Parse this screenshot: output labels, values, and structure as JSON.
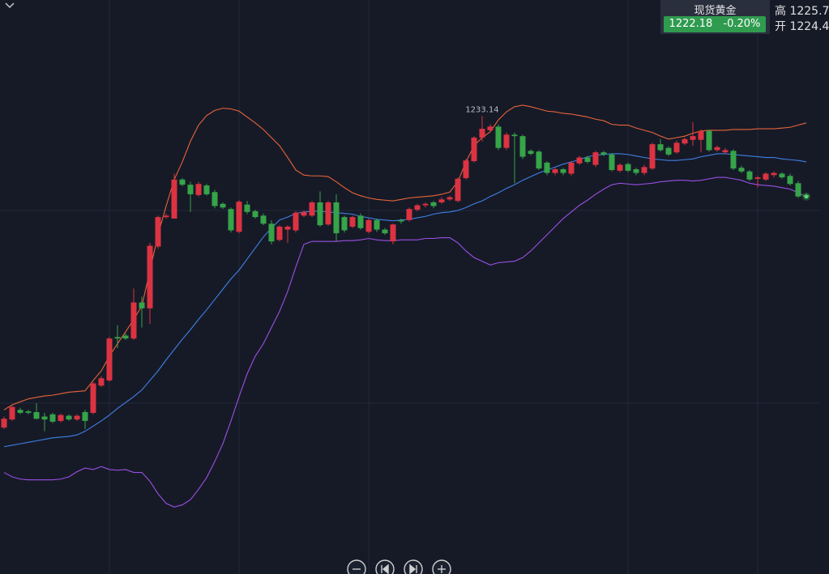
{
  "header": {
    "name": "现货黄金",
    "price": "1222.18",
    "change": "-0.20%",
    "high": "高 1225.7",
    "open": "开 1224.4"
  },
  "chart_data": {
    "type": "candlestick",
    "ylim": [
      1170.9,
      1248.9
    ],
    "up_color": "#dc3342",
    "down_color": "#36a449",
    "open": [
      1190.8,
      1191.9,
      1193.2,
      1193.0,
      1192.9,
      1192.3,
      1192.6,
      1191.7,
      1192.4,
      1191.9,
      1192.9,
      1192.8,
      1196.5,
      1197.2,
      1203.1,
      1203.3,
      1202.9,
      1207.8,
      1207.0,
      1215.4,
      1219.4,
      1219.2,
      1224.5,
      1223.8,
      1222.4,
      1223.7,
      1222.8,
      1221.2,
      1220.5,
      1217.4,
      1221.1,
      1220.2,
      1219.6,
      1218.5,
      1216.3,
      1217.7,
      1217.6,
      1219.6,
      1219.6,
      1221.4,
      1218.4,
      1221.4,
      1219.4,
      1218.1,
      1219.6,
      1217.4,
      1219.0,
      1217.7,
      1216.1,
      1219.0,
      1219.0,
      1220.4,
      1221.0,
      1221.4,
      1221.4,
      1221.8,
      1221.6,
      1224.7,
      1227.0,
      1230.2,
      1231.2,
      1231.7,
      1228.8,
      1230.6,
      1230.4,
      1228.4,
      1228.3,
      1226.8,
      1225.4,
      1225.9,
      1225.3,
      1226.7,
      1227.5,
      1226.5,
      1228.2,
      1227.9,
      1225.7,
      1226.6,
      1225.9,
      1225.4,
      1226.0,
      1229.3,
      1228.8,
      1228.2,
      1229.4,
      1229.9,
      1229.9,
      1231.1,
      1228.5,
      1228.2,
      1228.4,
      1226.1,
      1225.6,
      1224.6,
      1224.5,
      1225.1,
      1225.3,
      1225.0,
      1224.0,
      1222.4
    ],
    "high": [
      1192.3,
      1193.9,
      1193.5,
      1193.2,
      1194.1,
      1192.8,
      1192.8,
      1192.7,
      1192.6,
      1192.6,
      1193.2,
      1197.0,
      1197.8,
      1203.1,
      1204.7,
      1203.6,
      1209.7,
      1208.6,
      1215.9,
      1219.6,
      1219.9,
      1225.3,
      1224.7,
      1224.2,
      1224.2,
      1223.9,
      1223.1,
      1221.4,
      1220.7,
      1221.7,
      1221.6,
      1220.4,
      1219.9,
      1219.0,
      1218.3,
      1218.3,
      1220.2,
      1220.3,
      1221.6,
      1222.9,
      1221.6,
      1222.5,
      1219.6,
      1219.6,
      1219.9,
      1219.2,
      1219.2,
      1217.9,
      1218.5,
      1219.2,
      1220.7,
      1221.2,
      1221.4,
      1221.6,
      1222.1,
      1222.3,
      1224.8,
      1227.3,
      1230.4,
      1233.14,
      1232.0,
      1232.0,
      1230.9,
      1230.9,
      1230.6,
      1228.6,
      1228.5,
      1227.0,
      1226.1,
      1226.1,
      1227.0,
      1227.7,
      1227.7,
      1228.4,
      1228.4,
      1228.1,
      1226.7,
      1226.8,
      1226.1,
      1226.5,
      1229.5,
      1230.0,
      1229.0,
      1229.8,
      1230.2,
      1232.3,
      1231.3,
      1231.3,
      1229.1,
      1228.8,
      1228.6,
      1226.4,
      1225.8,
      1225.0,
      1225.5,
      1225.6,
      1225.5,
      1225.3,
      1224.3,
      1222.6
    ],
    "low": [
      1190.6,
      1191.7,
      1192.6,
      1192.6,
      1191.9,
      1190.3,
      1191.4,
      1191.5,
      1191.7,
      1191.7,
      1190.6,
      1192.6,
      1196.3,
      1197.0,
      1201.6,
      1202.7,
      1202.7,
      1204.4,
      1204.9,
      1215.1,
      1219.2,
      1219.2,
      1223.6,
      1220.1,
      1222.2,
      1222.3,
      1220.6,
      1220.5,
      1217.3,
      1217.2,
      1219.8,
      1219.2,
      1218.3,
      1215.7,
      1216.1,
      1215.9,
      1217.3,
      1219.4,
      1219.4,
      1218.1,
      1218.2,
      1216.1,
      1217.3,
      1217.9,
      1217.7,
      1217.2,
      1217.4,
      1217.0,
      1215.7,
      1218.5,
      1218.8,
      1220.2,
      1220.7,
      1220.6,
      1221.2,
      1221.6,
      1221.4,
      1224.5,
      1226.8,
      1229.7,
      1231.0,
      1228.5,
      1228.5,
      1224.0,
      1227.3,
      1227.8,
      1225.8,
      1225.1,
      1225.1,
      1225.1,
      1225.0,
      1226.5,
      1226.7,
      1226.2,
      1227.7,
      1225.6,
      1225.5,
      1225.5,
      1225.1,
      1225.1,
      1225.8,
      1228.3,
      1227.7,
      1228.0,
      1229.2,
      1229.1,
      1228.2,
      1228.3,
      1228.3,
      1228.0,
      1225.8,
      1225.4,
      1224.3,
      1223.4,
      1224.3,
      1224.8,
      1224.6,
      1223.7,
      1222.0,
      1222.0
    ],
    "close": [
      1192.0,
      1193.6,
      1192.8,
      1192.8,
      1192.0,
      1191.9,
      1191.6,
      1192.5,
      1191.9,
      1192.4,
      1191.7,
      1196.8,
      1197.5,
      1202.9,
      1202.9,
      1202.9,
      1207.8,
      1207.0,
      1215.5,
      1219.4,
      1219.6,
      1224.5,
      1223.8,
      1222.5,
      1223.9,
      1222.5,
      1220.9,
      1220.7,
      1217.6,
      1221.5,
      1220.1,
      1219.4,
      1218.5,
      1216.1,
      1218.1,
      1218.1,
      1220.0,
      1220.1,
      1221.4,
      1218.3,
      1221.4,
      1217.2,
      1217.6,
      1219.4,
      1217.9,
      1219.0,
      1217.7,
      1217.2,
      1218.4,
      1218.8,
      1220.5,
      1221.0,
      1221.2,
      1220.9,
      1221.8,
      1222.1,
      1224.6,
      1227.1,
      1230.2,
      1231.4,
      1231.7,
      1228.8,
      1230.6,
      1230.4,
      1227.6,
      1228.0,
      1226.0,
      1225.4,
      1225.9,
      1225.4,
      1226.8,
      1227.5,
      1226.9,
      1228.2,
      1227.9,
      1225.8,
      1226.5,
      1225.7,
      1225.4,
      1226.2,
      1229.3,
      1228.5,
      1227.9,
      1229.5,
      1230.0,
      1230.4,
      1231.1,
      1228.5,
      1228.9,
      1228.5,
      1226.0,
      1225.6,
      1224.5,
      1224.8,
      1225.3,
      1225.4,
      1224.8,
      1223.9,
      1222.2,
      1222.18
    ],
    "series": [
      {
        "color": "#e8643a",
        "values": [
          1193.2,
          1193.9,
          1194.3,
          1194.7,
          1194.9,
          1195.1,
          1195.2,
          1195.4,
          1195.6,
          1195.7,
          1195.8,
          1197.2,
          1198.5,
          1200.5,
          1202.2,
          1203.8,
          1205.5,
          1207.3,
          1212.1,
          1217.0,
          1220.9,
          1224.5,
          1226.9,
          1229.7,
          1231.9,
          1233.2,
          1233.9,
          1234.2,
          1234.1,
          1233.8,
          1233.0,
          1232.2,
          1231.3,
          1230.2,
          1229.1,
          1227.5,
          1225.8,
          1225.1,
          1225.0,
          1225.0,
          1224.9,
          1224.2,
          1223.4,
          1222.7,
          1222.3,
          1222.0,
          1221.8,
          1221.7,
          1221.6,
          1221.8,
          1222.0,
          1222.1,
          1222.2,
          1222.3,
          1222.5,
          1222.8,
          1224.2,
          1226.9,
          1229.1,
          1230.2,
          1231.0,
          1232.6,
          1233.7,
          1234.4,
          1234.6,
          1234.4,
          1234.1,
          1233.8,
          1233.7,
          1233.5,
          1233.4,
          1233.2,
          1233.0,
          1232.7,
          1232.5,
          1232.0,
          1231.9,
          1231.9,
          1231.5,
          1231.2,
          1230.9,
          1230.4,
          1230.0,
          1230.2,
          1230.4,
          1230.8,
          1231.1,
          1231.2,
          1231.2,
          1231.2,
          1231.3,
          1231.3,
          1231.3,
          1231.4,
          1231.4,
          1231.4,
          1231.5,
          1231.6,
          1231.9,
          1232.2
        ]
      },
      {
        "color": "#3f80e6",
        "values": [
          1188.2,
          1188.4,
          1188.6,
          1188.8,
          1189.0,
          1189.2,
          1189.4,
          1189.5,
          1189.6,
          1189.8,
          1190.3,
          1191.0,
          1191.7,
          1192.5,
          1193.4,
          1194.2,
          1195.0,
          1195.9,
          1197.2,
          1198.5,
          1200.0,
          1201.4,
          1202.8,
          1204.1,
          1205.5,
          1206.8,
          1208.2,
          1209.6,
          1211.0,
          1212.2,
          1213.7,
          1215.2,
          1216.7,
          1217.9,
          1219.0,
          1219.4,
          1219.9,
          1220.1,
          1220.2,
          1220.2,
          1220.1,
          1220.0,
          1219.9,
          1219.8,
          1219.5,
          1219.3,
          1219.1,
          1219.0,
          1218.9,
          1219.0,
          1219.1,
          1219.3,
          1219.5,
          1219.8,
          1220.0,
          1220.1,
          1220.3,
          1220.7,
          1221.2,
          1221.6,
          1222.2,
          1222.7,
          1223.3,
          1223.8,
          1224.4,
          1224.9,
          1225.4,
          1225.8,
          1226.2,
          1226.6,
          1226.9,
          1227.2,
          1227.6,
          1227.8,
          1227.9,
          1228.0,
          1228.0,
          1227.9,
          1227.7,
          1227.5,
          1227.3,
          1227.2,
          1227.1,
          1227.1,
          1227.2,
          1227.3,
          1227.6,
          1227.8,
          1228.0,
          1228.0,
          1227.9,
          1227.8,
          1227.7,
          1227.6,
          1227.5,
          1227.5,
          1227.3,
          1227.2,
          1227.1,
          1226.9
        ]
      },
      {
        "color": "#9a4fe3",
        "values": [
          1184.7,
          1184.1,
          1183.8,
          1183.7,
          1183.7,
          1183.7,
          1183.7,
          1183.8,
          1184.1,
          1184.8,
          1185.3,
          1185.1,
          1185.5,
          1185.1,
          1185.0,
          1185.1,
          1184.7,
          1184.7,
          1183.5,
          1181.8,
          1180.5,
          1180.0,
          1180.3,
          1181.0,
          1182.4,
          1184.0,
          1186.2,
          1188.6,
          1191.7,
          1195.0,
          1198.1,
          1200.5,
          1202.2,
          1204.4,
          1206.6,
          1209.3,
          1212.6,
          1215.7,
          1216.1,
          1216.1,
          1216.1,
          1216.1,
          1216.2,
          1216.2,
          1216.3,
          1216.5,
          1216.3,
          1216.2,
          1216.2,
          1216.3,
          1216.3,
          1216.3,
          1216.5,
          1216.5,
          1216.6,
          1216.6,
          1215.9,
          1214.8,
          1213.9,
          1213.4,
          1212.9,
          1213.2,
          1213.3,
          1213.4,
          1213.9,
          1214.8,
          1215.9,
          1217.0,
          1218.1,
          1219.2,
          1220.1,
          1221.0,
          1221.7,
          1222.5,
          1223.2,
          1223.8,
          1224.0,
          1223.9,
          1223.8,
          1223.9,
          1224.0,
          1224.2,
          1224.3,
          1224.4,
          1224.4,
          1224.3,
          1224.4,
          1224.6,
          1224.8,
          1224.8,
          1224.6,
          1224.4,
          1224.0,
          1223.8,
          1223.7,
          1223.6,
          1223.4,
          1223.2,
          1222.7,
          1222.2
        ]
      }
    ]
  }
}
